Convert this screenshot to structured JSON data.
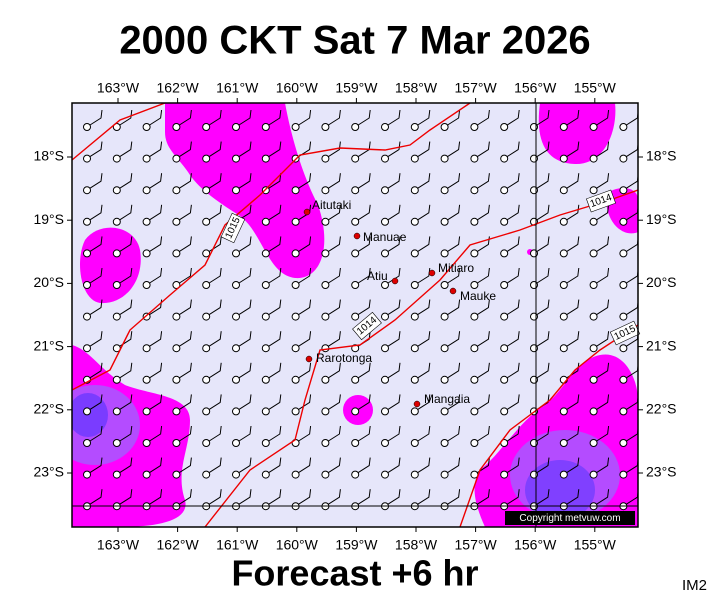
{
  "header": {
    "title": "2000 CKT Sat 7 Mar 2026"
  },
  "map": {
    "longitude_labels": [
      "163°W",
      "162°W",
      "161°W",
      "160°W",
      "159°W",
      "158°W",
      "157°W",
      "156°W",
      "155°W"
    ],
    "latitude_labels": [
      "18°S",
      "19°S",
      "20°S",
      "21°S",
      "22°S",
      "23°S"
    ],
    "places": [
      "Aitutaki",
      "Manuae",
      "Atiu",
      "Mitiaro",
      "Mauke",
      "Rarotonga",
      "Mangaia"
    ],
    "isobar_labels": [
      "1015",
      "1014",
      "1014",
      "1015"
    ],
    "copyright": "Copyright metvuw.com"
  },
  "footer": {
    "forecast": "Forecast +6 hr",
    "image_id": "IM2"
  }
}
